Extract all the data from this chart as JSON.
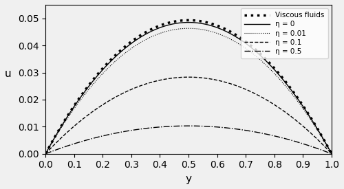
{
  "title": "",
  "xlabel": "y",
  "ylabel": "u",
  "xlim": [
    0,
    1
  ],
  "ylim": [
    0,
    0.055
  ],
  "yticks": [
    0.0,
    0.01,
    0.02,
    0.03,
    0.04,
    0.05
  ],
  "xticks": [
    0,
    0.1,
    0.2,
    0.3,
    0.4,
    0.5,
    0.6,
    0.7,
    0.8,
    0.9,
    1
  ],
  "legend_labels": [
    "Viscous fluids",
    "η = 0",
    "η = 0.01",
    "η = 0.1",
    "η = 0.5"
  ],
  "background_color": "#f0f0f0",
  "line_color": "black",
  "viscous_peak": 0.0493,
  "eta0_peak": 0.0485,
  "eta001_peak": 0.0463,
  "eta01_peak": 0.0283,
  "eta05_peak": 0.0103
}
